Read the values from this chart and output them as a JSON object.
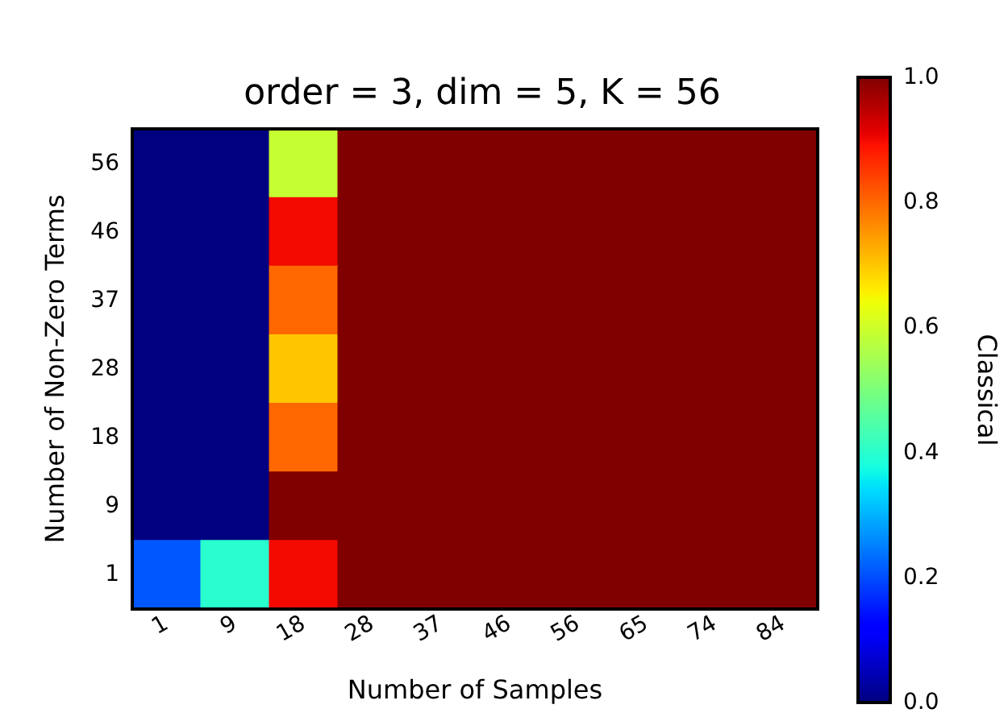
{
  "chart_data": {
    "type": "heatmap",
    "title": "order = 3, dim = 5, K = 56",
    "xlabel": "Number of Samples",
    "ylabel": "Number of Non-Zero Terms",
    "clabel": "Classical",
    "categories": [
      "1",
      "9",
      "18",
      "28",
      "37",
      "46",
      "56",
      "65",
      "74",
      "84"
    ],
    "y_categories": [
      "56",
      "46",
      "37",
      "28",
      "18",
      "9",
      "1"
    ],
    "cells": [
      [
        0,
        0,
        0.59,
        1,
        1,
        1,
        1,
        1,
        1,
        1
      ],
      [
        0,
        0,
        0.9,
        1,
        1,
        1,
        1,
        1,
        1,
        1
      ],
      [
        0,
        0,
        0.8,
        1,
        1,
        1,
        1,
        1,
        1,
        1
      ],
      [
        0,
        0,
        0.7,
        1,
        1,
        1,
        1,
        1,
        1,
        1
      ],
      [
        0,
        0,
        0.8,
        1,
        1,
        1,
        1,
        1,
        1,
        1
      ],
      [
        0,
        0,
        1,
        1,
        1,
        1,
        1,
        1,
        1,
        1
      ],
      [
        0.21,
        0.4,
        0.9,
        1,
        1,
        1,
        1,
        1,
        1,
        1
      ]
    ],
    "clim": [
      0,
      1
    ],
    "cticks": [
      {
        "value": 0,
        "label": "0.0"
      },
      {
        "value": 0.2,
        "label": "0.2"
      },
      {
        "value": 0.4,
        "label": "0.4"
      },
      {
        "value": 0.6,
        "label": "0.6"
      },
      {
        "value": 0.8,
        "label": "0.8"
      },
      {
        "value": 1,
        "label": "1.0"
      }
    ]
  }
}
